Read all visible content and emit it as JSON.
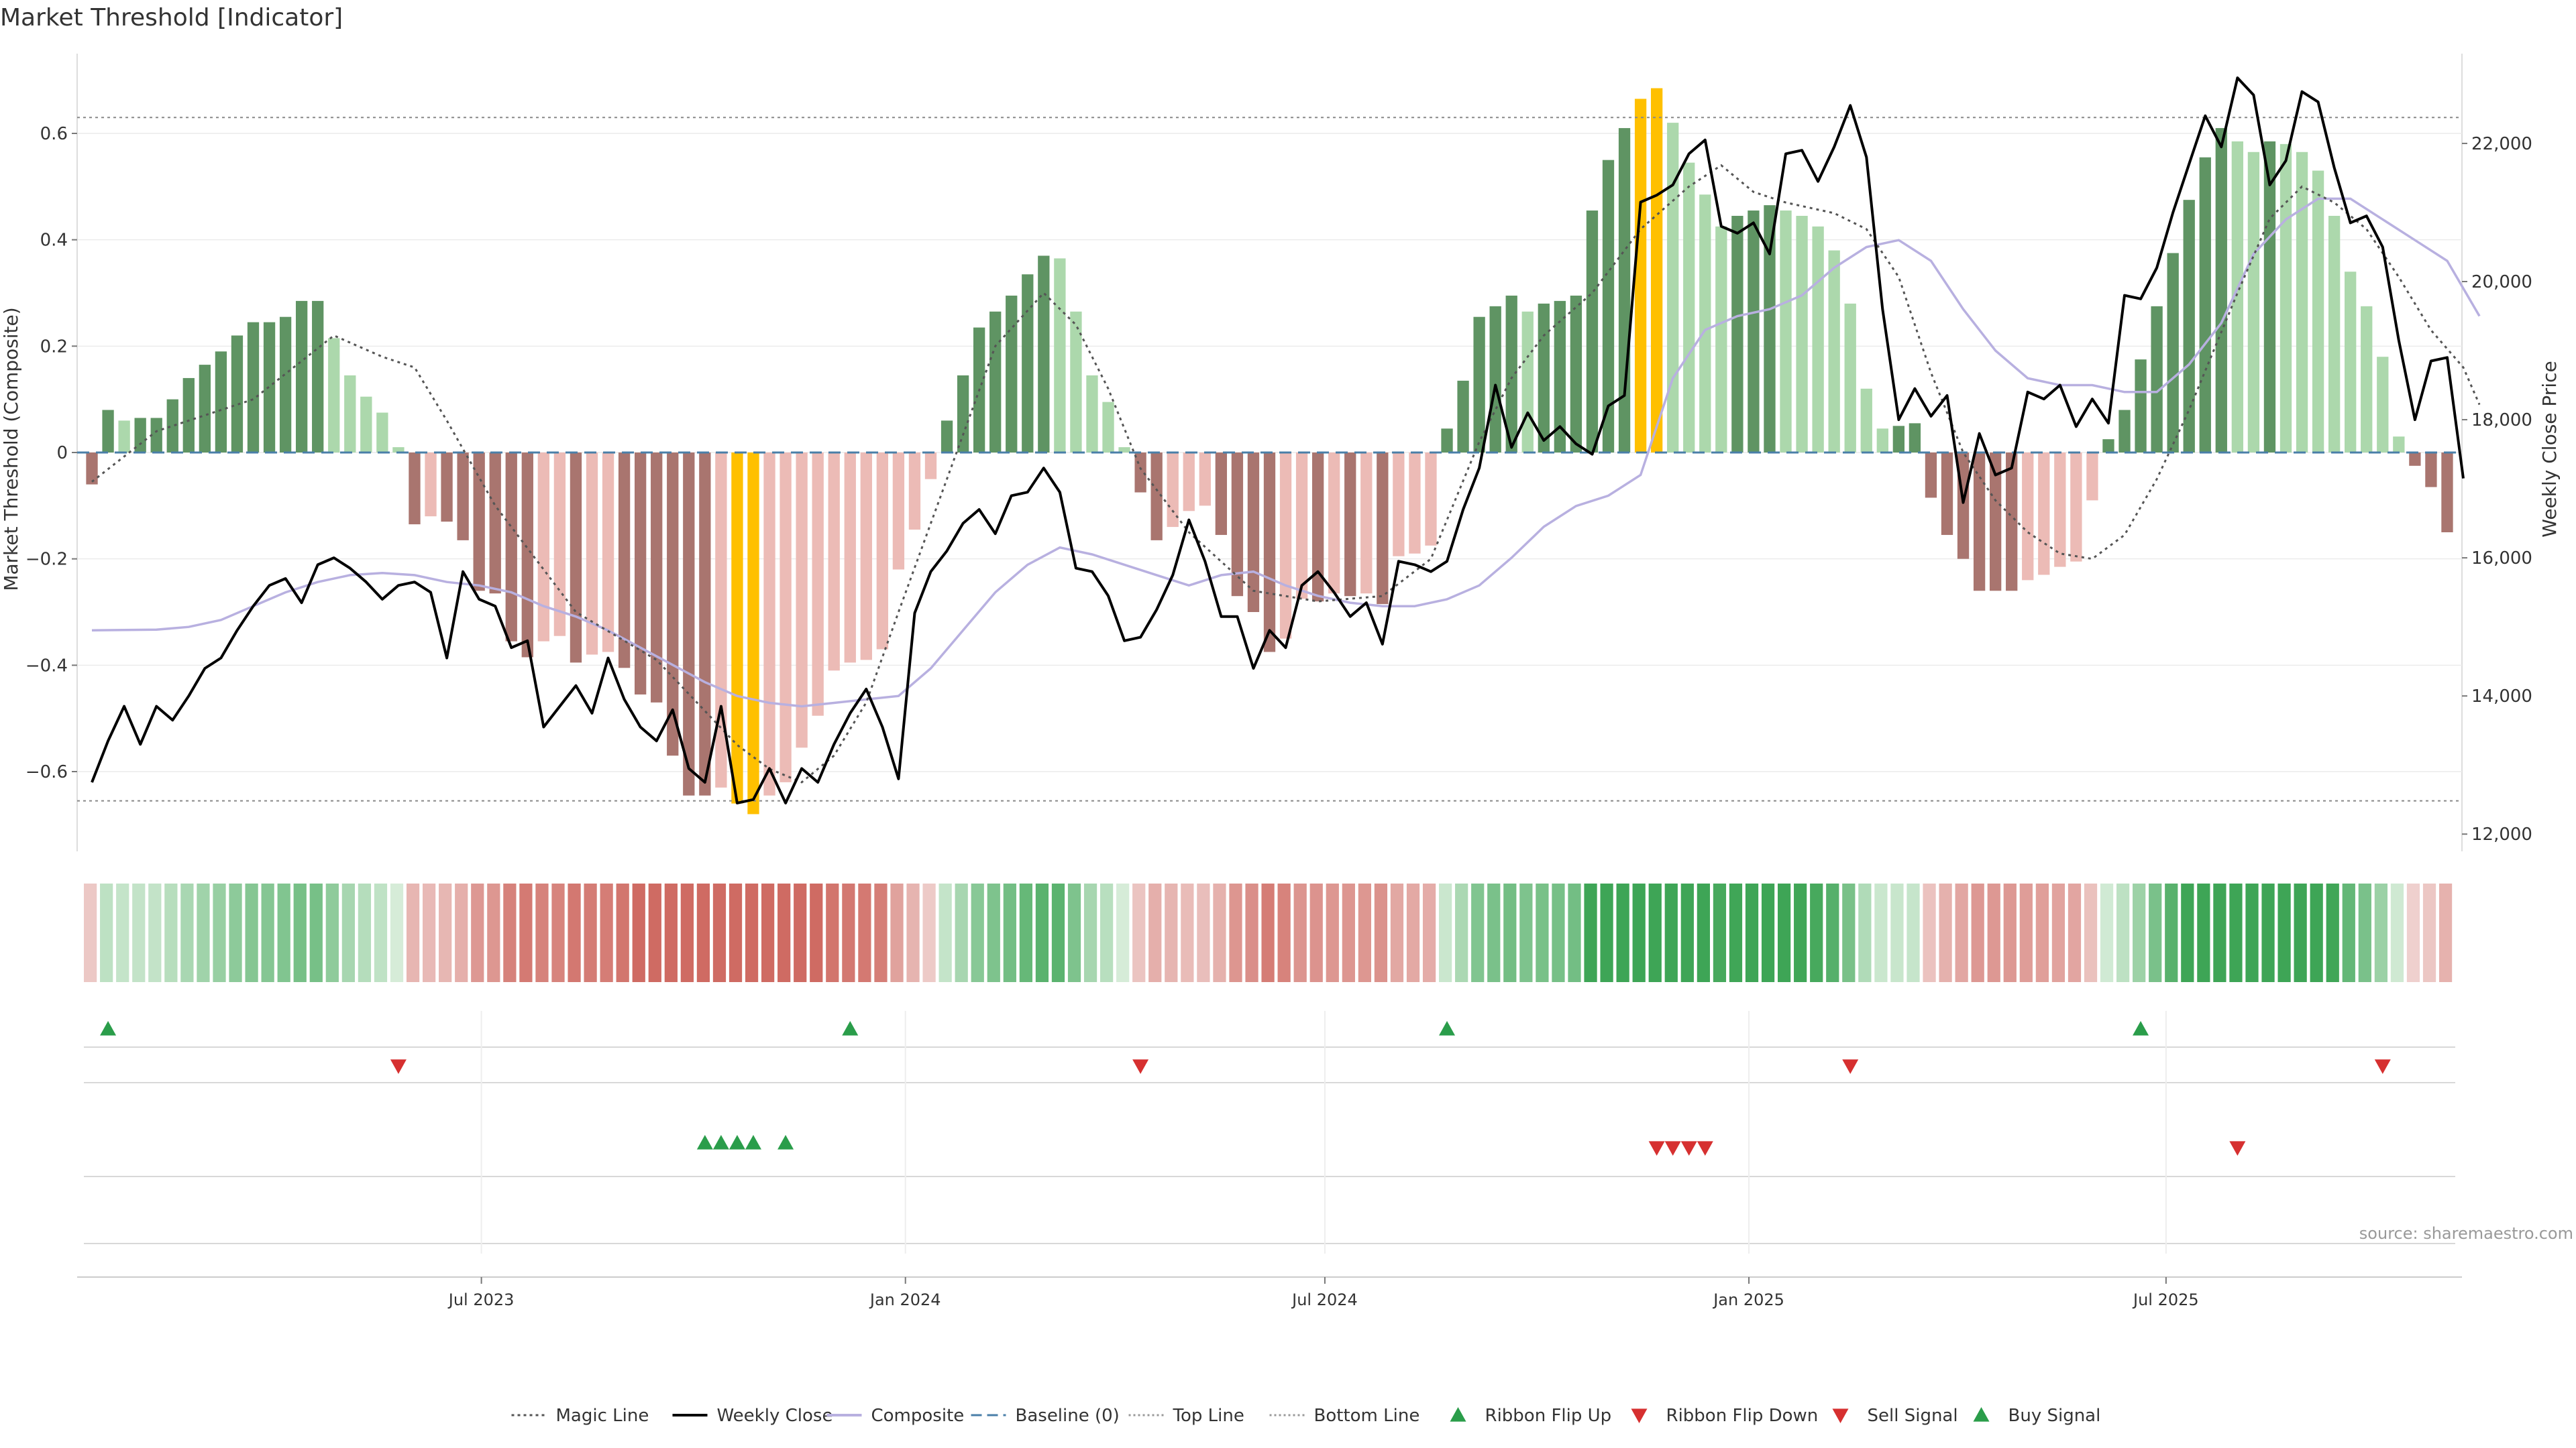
{
  "chart_data": {
    "type": "bar",
    "title": "Market Threshold [Indicator]",
    "source": "source: sharemaestro.com",
    "y_left": {
      "label": "Market Threshold (Composite)",
      "ylim": [
        -0.75,
        0.75
      ],
      "ticks": [
        0.6,
        0.4,
        0.2,
        0,
        -0.2,
        -0.4,
        -0.6
      ],
      "tick_labels": [
        "0.6",
        "0.4",
        "0.2",
        "0",
        "−0.2",
        "−0.4",
        "−0.6"
      ]
    },
    "y_right": {
      "label": "Weekly Close Price",
      "ylim": [
        11750,
        23300
      ],
      "ticks": [
        12000,
        14000,
        16000,
        18000,
        20000,
        22000
      ],
      "tick_labels": [
        "12,000",
        "14,000",
        "16,000",
        "18,000",
        "20,000",
        "22,000"
      ]
    },
    "x_axis": {
      "start_date": "2023-01-13",
      "end_date": "2025-10-17",
      "ticks": [
        {
          "date": "2023-07-01",
          "label": "Jul 2023"
        },
        {
          "date": "2024-01-01",
          "label": "Jan 2024"
        },
        {
          "date": "2024-07-01",
          "label": "Jul 2024"
        },
        {
          "date": "2025-01-01",
          "label": "Jan 2025"
        },
        {
          "date": "2025-07-01",
          "label": "Jul 2025"
        }
      ]
    },
    "top_line": 0.63,
    "bottom_line": -0.655,
    "composite_bars": [
      -0.06,
      0.08,
      0.06,
      0.065,
      0.065,
      0.1,
      0.14,
      0.165,
      0.19,
      0.22,
      0.245,
      0.245,
      0.255,
      0.285,
      0.285,
      0.215,
      0.145,
      0.105,
      0.075,
      0.01,
      -0.135,
      -0.12,
      -0.13,
      -0.165,
      -0.26,
      -0.265,
      -0.355,
      -0.385,
      -0.355,
      -0.345,
      -0.395,
      -0.38,
      -0.375,
      -0.405,
      -0.455,
      -0.47,
      -0.57,
      -0.645,
      -0.645,
      -0.63,
      -0.66,
      -0.68,
      -0.645,
      -0.62,
      -0.555,
      -0.495,
      -0.41,
      -0.395,
      -0.39,
      -0.37,
      -0.22,
      -0.145,
      -0.05,
      0.06,
      0.145,
      0.235,
      0.265,
      0.295,
      0.335,
      0.37,
      0.365,
      0.265,
      0.145,
      0.095,
      0.01,
      -0.075,
      -0.165,
      -0.14,
      -0.11,
      -0.1,
      -0.155,
      -0.27,
      -0.3,
      -0.375,
      -0.35,
      -0.275,
      -0.28,
      -0.265,
      -0.27,
      -0.265,
      -0.285,
      -0.195,
      -0.19,
      -0.175,
      0.045,
      0.135,
      0.255,
      0.275,
      0.295,
      0.265,
      0.28,
      0.285,
      0.295,
      0.455,
      0.55,
      0.61,
      0.665,
      0.685,
      0.62,
      0.545,
      0.485,
      0.425,
      0.445,
      0.455,
      0.465,
      0.455,
      0.445,
      0.425,
      0.38,
      0.28,
      0.12,
      0.045,
      0.05,
      0.055,
      -0.085,
      -0.155,
      -0.2,
      -0.26,
      -0.26,
      -0.26,
      -0.24,
      -0.23,
      -0.215,
      -0.205,
      -0.09,
      0.025,
      0.08,
      0.175,
      0.275,
      0.375,
      0.475,
      0.555,
      0.61,
      0.585,
      0.565,
      0.585,
      0.58,
      0.565,
      0.53,
      0.445,
      0.34,
      0.275,
      0.18,
      0.03,
      -0.025,
      -0.065,
      -0.15
    ],
    "magic_line": [
      [
        0,
        -0.055
      ],
      [
        4,
        0.04
      ],
      [
        10,
        0.1
      ],
      [
        15,
        0.22
      ],
      [
        18,
        0.18
      ],
      [
        20,
        0.16
      ],
      [
        22,
        0.06
      ],
      [
        25,
        -0.1
      ],
      [
        30,
        -0.3
      ],
      [
        35,
        -0.39
      ],
      [
        40,
        -0.55
      ],
      [
        42,
        -0.595
      ],
      [
        44,
        -0.62
      ],
      [
        46,
        -0.57
      ],
      [
        48,
        -0.47
      ],
      [
        50,
        -0.3
      ],
      [
        53,
        -0.05
      ],
      [
        56,
        0.2
      ],
      [
        59,
        0.3
      ],
      [
        61,
        0.24
      ],
      [
        63,
        0.12
      ],
      [
        65,
        -0.03
      ],
      [
        68,
        -0.15
      ],
      [
        72,
        -0.26
      ],
      [
        76,
        -0.28
      ],
      [
        80,
        -0.27
      ],
      [
        83,
        -0.2
      ],
      [
        86,
        0.02
      ],
      [
        88,
        0.14
      ],
      [
        90,
        0.22
      ],
      [
        93,
        0.3
      ],
      [
        96,
        0.42
      ],
      [
        99,
        0.5
      ],
      [
        101,
        0.54
      ],
      [
        103,
        0.49
      ],
      [
        105,
        0.47
      ],
      [
        108,
        0.45
      ],
      [
        110,
        0.42
      ],
      [
        112,
        0.33
      ],
      [
        114,
        0.15
      ],
      [
        116,
        0.0
      ],
      [
        118,
        -0.09
      ],
      [
        120,
        -0.15
      ],
      [
        122,
        -0.19
      ],
      [
        124,
        -0.2
      ],
      [
        126,
        -0.155
      ],
      [
        128,
        -0.05
      ],
      [
        130,
        0.08
      ],
      [
        133,
        0.3
      ],
      [
        135,
        0.44
      ],
      [
        137,
        0.5
      ],
      [
        139,
        0.47
      ],
      [
        141,
        0.42
      ],
      [
        143,
        0.33
      ],
      [
        145,
        0.23
      ],
      [
        147,
        0.16
      ],
      [
        148,
        0.09
      ]
    ],
    "composite_line": [
      [
        0,
        14950
      ],
      [
        4,
        14960
      ],
      [
        6,
        15000
      ],
      [
        8,
        15100
      ],
      [
        10,
        15300
      ],
      [
        12,
        15500
      ],
      [
        14,
        15650
      ],
      [
        16,
        15750
      ],
      [
        18,
        15780
      ],
      [
        20,
        15750
      ],
      [
        22,
        15650
      ],
      [
        24,
        15600
      ],
      [
        26,
        15500
      ],
      [
        28,
        15300
      ],
      [
        30,
        15150
      ],
      [
        32,
        14950
      ],
      [
        34,
        14700
      ],
      [
        36,
        14450
      ],
      [
        38,
        14200
      ],
      [
        40,
        14000
      ],
      [
        42,
        13900
      ],
      [
        44,
        13850
      ],
      [
        46,
        13900
      ],
      [
        48,
        13950
      ],
      [
        50,
        14000
      ],
      [
        52,
        14400
      ],
      [
        54,
        14950
      ],
      [
        56,
        15500
      ],
      [
        58,
        15900
      ],
      [
        60,
        16150
      ],
      [
        62,
        16050
      ],
      [
        64,
        15900
      ],
      [
        66,
        15750
      ],
      [
        68,
        15600
      ],
      [
        70,
        15750
      ],
      [
        72,
        15800
      ],
      [
        74,
        15600
      ],
      [
        76,
        15450
      ],
      [
        78,
        15350
      ],
      [
        80,
        15300
      ],
      [
        82,
        15300
      ],
      [
        84,
        15400
      ],
      [
        86,
        15600
      ],
      [
        88,
        16000
      ],
      [
        90,
        16450
      ],
      [
        92,
        16750
      ],
      [
        94,
        16900
      ],
      [
        96,
        17200
      ],
      [
        98,
        18600
      ],
      [
        100,
        19300
      ],
      [
        102,
        19500
      ],
      [
        104,
        19600
      ],
      [
        106,
        19800
      ],
      [
        108,
        20200
      ],
      [
        110,
        20500
      ],
      [
        112,
        20600
      ],
      [
        114,
        20300
      ],
      [
        116,
        19600
      ],
      [
        118,
        19000
      ],
      [
        120,
        18600
      ],
      [
        122,
        18500
      ],
      [
        124,
        18500
      ],
      [
        126,
        18400
      ],
      [
        128,
        18400
      ],
      [
        130,
        18800
      ],
      [
        132,
        19400
      ],
      [
        134,
        20400
      ],
      [
        136,
        20900
      ],
      [
        138,
        21200
      ],
      [
        140,
        21200
      ],
      [
        142,
        20900
      ],
      [
        144,
        20600
      ],
      [
        146,
        20300
      ],
      [
        148,
        19500
      ]
    ],
    "weekly_close": [
      [
        0,
        12750
      ],
      [
        1,
        13350
      ],
      [
        2,
        13850
      ],
      [
        3,
        13300
      ],
      [
        4,
        13850
      ],
      [
        5,
        13650
      ],
      [
        6,
        14000
      ],
      [
        7,
        14400
      ],
      [
        8,
        14550
      ],
      [
        9,
        14950
      ],
      [
        10,
        15300
      ],
      [
        11,
        15600
      ],
      [
        12,
        15700
      ],
      [
        13,
        15350
      ],
      [
        14,
        15900
      ],
      [
        15,
        16000
      ],
      [
        16,
        15850
      ],
      [
        17,
        15650
      ],
      [
        18,
        15400
      ],
      [
        19,
        15600
      ],
      [
        20,
        15650
      ],
      [
        21,
        15500
      ],
      [
        22,
        14550
      ],
      [
        23,
        15800
      ],
      [
        24,
        15400
      ],
      [
        25,
        15300
      ],
      [
        26,
        14700
      ],
      [
        27,
        14800
      ],
      [
        28,
        13550
      ],
      [
        29,
        13850
      ],
      [
        30,
        14150
      ],
      [
        31,
        13750
      ],
      [
        32,
        14550
      ],
      [
        33,
        13950
      ],
      [
        34,
        13550
      ],
      [
        35,
        13350
      ],
      [
        36,
        13800
      ],
      [
        37,
        12950
      ],
      [
        38,
        12750
      ],
      [
        39,
        13850
      ],
      [
        40,
        12450
      ],
      [
        41,
        12500
      ],
      [
        42,
        12950
      ],
      [
        43,
        12450
      ],
      [
        44,
        12950
      ],
      [
        45,
        12750
      ],
      [
        46,
        13300
      ],
      [
        47,
        13750
      ],
      [
        48,
        14100
      ],
      [
        49,
        13550
      ],
      [
        50,
        12800
      ],
      [
        51,
        15200
      ],
      [
        52,
        15800
      ],
      [
        53,
        16100
      ],
      [
        54,
        16500
      ],
      [
        55,
        16700
      ],
      [
        56,
        16350
      ],
      [
        57,
        16900
      ],
      [
        58,
        16950
      ],
      [
        59,
        17300
      ],
      [
        60,
        16950
      ],
      [
        61,
        15850
      ],
      [
        62,
        15800
      ],
      [
        63,
        15450
      ],
      [
        64,
        14800
      ],
      [
        65,
        14850
      ],
      [
        66,
        15250
      ],
      [
        67,
        15750
      ],
      [
        68,
        16550
      ],
      [
        69,
        15950
      ],
      [
        70,
        15150
      ],
      [
        71,
        15150
      ],
      [
        72,
        14400
      ],
      [
        73,
        14950
      ],
      [
        74,
        14700
      ],
      [
        75,
        15600
      ],
      [
        76,
        15800
      ],
      [
        77,
        15500
      ],
      [
        78,
        15150
      ],
      [
        79,
        15350
      ],
      [
        80,
        14750
      ],
      [
        81,
        15950
      ],
      [
        82,
        15900
      ],
      [
        83,
        15800
      ],
      [
        84,
        15950
      ],
      [
        85,
        16700
      ],
      [
        86,
        17300
      ],
      [
        87,
        18500
      ],
      [
        88,
        17600
      ],
      [
        89,
        18100
      ],
      [
        90,
        17700
      ],
      [
        91,
        17900
      ],
      [
        92,
        17650
      ],
      [
        93,
        17500
      ],
      [
        94,
        18200
      ],
      [
        95,
        18350
      ],
      [
        96,
        21150
      ],
      [
        97,
        21250
      ],
      [
        98,
        21400
      ],
      [
        99,
        21850
      ],
      [
        100,
        22050
      ],
      [
        101,
        20800
      ],
      [
        102,
        20700
      ],
      [
        103,
        20850
      ],
      [
        104,
        20400
      ],
      [
        105,
        21850
      ],
      [
        106,
        21900
      ],
      [
        107,
        21450
      ],
      [
        108,
        21950
      ],
      [
        109,
        22550
      ],
      [
        110,
        21800
      ],
      [
        111,
        19600
      ],
      [
        112,
        18000
      ],
      [
        113,
        18450
      ],
      [
        114,
        18050
      ],
      [
        115,
        18350
      ],
      [
        116,
        16800
      ],
      [
        117,
        17800
      ],
      [
        118,
        17200
      ],
      [
        119,
        17300
      ],
      [
        120,
        18400
      ],
      [
        121,
        18300
      ],
      [
        122,
        18500
      ],
      [
        123,
        17900
      ],
      [
        124,
        18300
      ],
      [
        125,
        17950
      ],
      [
        126,
        19800
      ],
      [
        127,
        19750
      ],
      [
        128,
        20200
      ],
      [
        129,
        21000
      ],
      [
        130,
        21700
      ],
      [
        131,
        22400
      ],
      [
        132,
        21950
      ],
      [
        133,
        22950
      ],
      [
        134,
        22700
      ],
      [
        135,
        21400
      ],
      [
        136,
        21750
      ],
      [
        137,
        22750
      ],
      [
        138,
        22600
      ],
      [
        139,
        21650
      ],
      [
        140,
        20850
      ],
      [
        141,
        20950
      ],
      [
        142,
        20500
      ],
      [
        143,
        19150
      ],
      [
        144,
        18000
      ],
      [
        145,
        18850
      ],
      [
        146,
        18900
      ],
      [
        147,
        17150
      ]
    ],
    "ribbon_flip_up_weeks": [
      1,
      47,
      84,
      127
    ],
    "ribbon_flip_down_weeks": [
      19,
      65,
      109,
      142
    ],
    "buy_signal_weeks": [
      38,
      39,
      40,
      41,
      43
    ],
    "sell_signal_weeks": [
      97,
      98,
      99,
      100,
      133
    ],
    "legend": [
      {
        "label": "Magic Line",
        "kind": "dotted-line",
        "color": "#555555"
      },
      {
        "label": "Weekly Close",
        "kind": "line",
        "color": "#000000"
      },
      {
        "label": "Composite",
        "kind": "line",
        "color": "#b8b0e0"
      },
      {
        "label": "Baseline (0)",
        "kind": "dashed-line",
        "color": "#4a7fa8"
      },
      {
        "label": "Top Line",
        "kind": "fine-dotted-line",
        "color": "#999999"
      },
      {
        "label": "Bottom Line",
        "kind": "fine-dotted-line",
        "color": "#999999"
      },
      {
        "label": "Ribbon Flip Up",
        "kind": "triangle-up",
        "color": "#2a9d4a"
      },
      {
        "label": "Ribbon Flip Down",
        "kind": "triangle-down",
        "color": "#d63030"
      },
      {
        "label": "Sell Signal",
        "kind": "triangle-down",
        "color": "#d63030"
      },
      {
        "label": "Buy Signal",
        "kind": "triangle-up",
        "color": "#2a9d4a"
      }
    ],
    "colors": {
      "pos_strong": "#5f9463",
      "pos_light": "#acd8ac",
      "neg_strong": "#a9756f",
      "neg_light": "#ecbbb6",
      "extreme": "#ffc000",
      "weekly_close": "#000000",
      "composite_line": "#b8b0e0",
      "magic_line": "#555555",
      "baseline": "#4a7fa8",
      "threshold": "#888888"
    }
  }
}
